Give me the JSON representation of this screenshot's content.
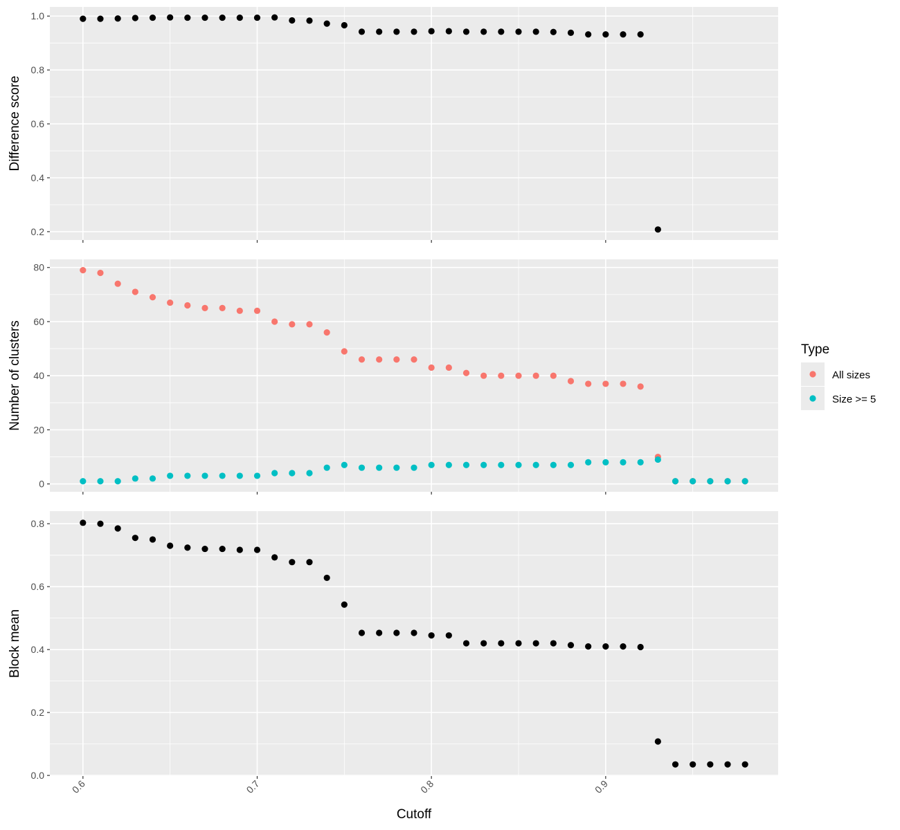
{
  "chart_data": {
    "type": "scatter",
    "xlabel": "Cutoff",
    "x_ticks": [
      "0.6",
      "0.7",
      "0.8",
      "0.9"
    ],
    "xlim": [
      0.581,
      0.999
    ],
    "legend": {
      "title": "Type",
      "placement": "right",
      "entries": [
        {
          "label": "All sizes",
          "color": "#F8766D"
        },
        {
          "label": "Size >= 5",
          "color": "#00BFC4"
        }
      ]
    },
    "panels": [
      {
        "ylabel": "Difference score",
        "ylim": [
          0.169,
          1.034
        ],
        "y_ticks": [
          "0.2",
          "0.4",
          "0.6",
          "0.8",
          "1.0"
        ],
        "series": [
          {
            "color": "#000000",
            "x": [
              0.6,
              0.61,
              0.62,
              0.63,
              0.64,
              0.65,
              0.66,
              0.67,
              0.68,
              0.69,
              0.7,
              0.71,
              0.72,
              0.73,
              0.74,
              0.75,
              0.76,
              0.77,
              0.78,
              0.79,
              0.8,
              0.81,
              0.82,
              0.83,
              0.84,
              0.85,
              0.86,
              0.87,
              0.88,
              0.89,
              0.9,
              0.91,
              0.92,
              0.93
            ],
            "y": [
              0.99,
              0.99,
              0.991,
              0.993,
              0.994,
              0.995,
              0.994,
              0.994,
              0.994,
              0.994,
              0.994,
              0.995,
              0.984,
              0.983,
              0.972,
              0.966,
              0.942,
              0.942,
              0.942,
              0.942,
              0.944,
              0.944,
              0.942,
              0.942,
              0.942,
              0.942,
              0.942,
              0.941,
              0.938,
              0.932,
              0.932,
              0.932,
              0.932,
              0.208
            ]
          }
        ]
      },
      {
        "ylabel": "Number of clusters",
        "ylim": [
          -2.9,
          83.0
        ],
        "y_ticks": [
          "0",
          "20",
          "40",
          "60",
          "80"
        ],
        "series": [
          {
            "name": "All sizes",
            "color": "#F8766D",
            "x": [
              0.6,
              0.61,
              0.62,
              0.63,
              0.64,
              0.65,
              0.66,
              0.67,
              0.68,
              0.69,
              0.7,
              0.71,
              0.72,
              0.73,
              0.74,
              0.75,
              0.76,
              0.77,
              0.78,
              0.79,
              0.8,
              0.81,
              0.82,
              0.83,
              0.84,
              0.85,
              0.86,
              0.87,
              0.88,
              0.89,
              0.9,
              0.91,
              0.92,
              0.93,
              0.94,
              0.95,
              0.96,
              0.97,
              0.98
            ],
            "y": [
              79,
              78,
              74,
              71,
              69,
              67,
              66,
              65,
              65,
              64,
              64,
              60,
              59,
              59,
              56,
              49,
              46,
              46,
              46,
              46,
              43,
              43,
              41,
              40,
              40,
              40,
              40,
              40,
              38,
              37,
              37,
              37,
              36,
              10,
              1,
              1,
              1,
              1,
              1
            ]
          },
          {
            "name": "Size >= 5",
            "color": "#00BFC4",
            "x": [
              0.6,
              0.61,
              0.62,
              0.63,
              0.64,
              0.65,
              0.66,
              0.67,
              0.68,
              0.69,
              0.7,
              0.71,
              0.72,
              0.73,
              0.74,
              0.75,
              0.76,
              0.77,
              0.78,
              0.79,
              0.8,
              0.81,
              0.82,
              0.83,
              0.84,
              0.85,
              0.86,
              0.87,
              0.88,
              0.89,
              0.9,
              0.91,
              0.92,
              0.93,
              0.94,
              0.95,
              0.96,
              0.97,
              0.98
            ],
            "y": [
              1,
              1,
              1,
              2,
              2,
              3,
              3,
              3,
              3,
              3,
              3,
              4,
              4,
              4,
              6,
              7,
              6,
              6,
              6,
              6,
              7,
              7,
              7,
              7,
              7,
              7,
              7,
              7,
              7,
              8,
              8,
              8,
              8,
              9,
              1,
              1,
              1,
              1,
              1
            ]
          }
        ]
      },
      {
        "ylabel": "Block mean",
        "ylim": [
          -0.002,
          0.84
        ],
        "y_ticks": [
          "0.0",
          "0.2",
          "0.4",
          "0.6",
          "0.8"
        ],
        "series": [
          {
            "color": "#000000",
            "x": [
              0.6,
              0.61,
              0.62,
              0.63,
              0.64,
              0.65,
              0.66,
              0.67,
              0.68,
              0.69,
              0.7,
              0.71,
              0.72,
              0.73,
              0.74,
              0.75,
              0.76,
              0.77,
              0.78,
              0.79,
              0.8,
              0.81,
              0.82,
              0.83,
              0.84,
              0.85,
              0.86,
              0.87,
              0.88,
              0.89,
              0.9,
              0.91,
              0.92,
              0.93,
              0.94,
              0.95,
              0.96,
              0.97,
              0.98
            ],
            "y": [
              0.803,
              0.8,
              0.785,
              0.755,
              0.75,
              0.73,
              0.724,
              0.72,
              0.72,
              0.717,
              0.717,
              0.693,
              0.678,
              0.678,
              0.628,
              0.543,
              0.453,
              0.453,
              0.453,
              0.453,
              0.445,
              0.445,
              0.42,
              0.42,
              0.42,
              0.42,
              0.42,
              0.42,
              0.414,
              0.41,
              0.41,
              0.41,
              0.408,
              0.108,
              0.035,
              0.035,
              0.035,
              0.035,
              0.035
            ]
          }
        ]
      }
    ]
  }
}
